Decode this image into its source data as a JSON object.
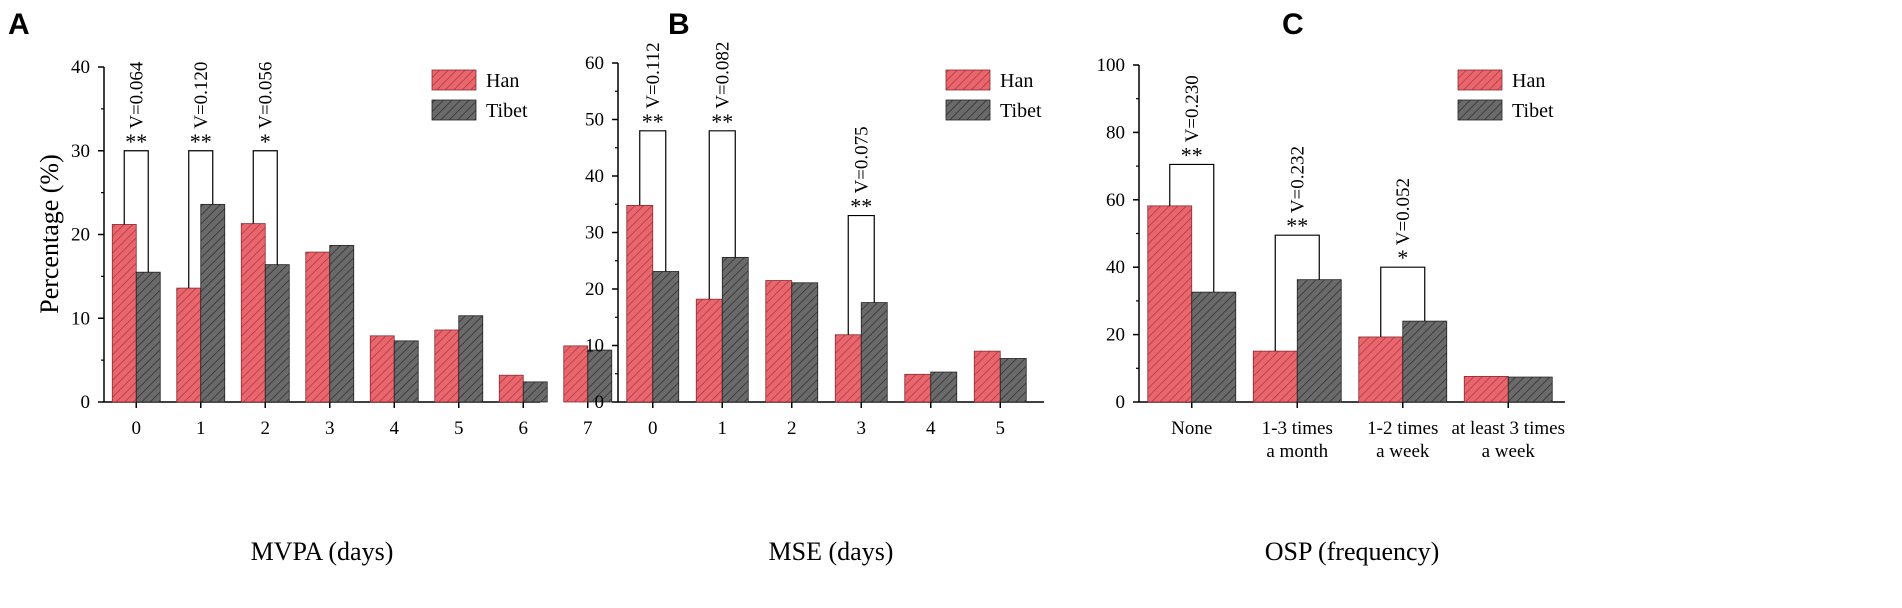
{
  "colors": {
    "han": "#e8666d",
    "tibet": "#6a6a6a"
  },
  "chart_data": [
    {
      "type": "bar",
      "panel": "A",
      "xlabel": "MVPA (days)",
      "ylabel": "Percentage (%)",
      "ylim": [
        0,
        40
      ],
      "yticks": [
        0,
        10,
        20,
        30,
        40
      ],
      "categories": [
        "0",
        "1",
        "2",
        "3",
        "4",
        "5",
        "6",
        "7"
      ],
      "series": [
        {
          "name": "Han",
          "values": [
            21.2,
            13.6,
            21.3,
            17.9,
            7.9,
            8.6,
            3.2,
            6.7
          ]
        },
        {
          "name": "Tibet",
          "values": [
            15.5,
            23.6,
            16.4,
            18.7,
            7.3,
            10.3,
            2.4,
            6.2
          ]
        }
      ],
      "legend_position": "top-right",
      "annotations": [
        {
          "category": "0",
          "bracket_y": 30,
          "stars": "**",
          "v": "V=0.064"
        },
        {
          "category": "1",
          "bracket_y": 30,
          "stars": "**",
          "v": "V=0.120"
        },
        {
          "category": "2",
          "bracket_y": 30,
          "stars": "*",
          "v": "V=0.056"
        }
      ]
    },
    {
      "type": "bar",
      "panel": "B",
      "xlabel": "MSE (days)",
      "ylabel": "",
      "ylim": [
        0,
        60
      ],
      "yticks": [
        0,
        10,
        20,
        30,
        40,
        50,
        60
      ],
      "categories": [
        "0",
        "1",
        "2",
        "3",
        "4",
        "5"
      ],
      "series": [
        {
          "name": "Han",
          "values": [
            34.8,
            18.2,
            21.5,
            11.9,
            4.9,
            9.0
          ]
        },
        {
          "name": "Tibet",
          "values": [
            23.1,
            25.6,
            21.1,
            17.6,
            5.3,
            7.7
          ]
        }
      ],
      "legend_position": "top-right",
      "annotations": [
        {
          "category": "0",
          "bracket_y": 48,
          "stars": "**",
          "v": "V=0.112"
        },
        {
          "category": "1",
          "bracket_y": 48,
          "stars": "**",
          "v": "V=0.082"
        },
        {
          "category": "3",
          "bracket_y": 33,
          "stars": "**",
          "v": "V=0.075"
        }
      ]
    },
    {
      "type": "bar",
      "panel": "C",
      "xlabel": "OSP (frequency)",
      "ylabel": "",
      "ylim": [
        0,
        100
      ],
      "yticks": [
        0,
        20,
        40,
        60,
        80,
        100
      ],
      "categories": [
        [
          "None"
        ],
        [
          "1-3 times",
          "a month"
        ],
        [
          "1-2 times",
          "a week"
        ],
        [
          "at least 3 times",
          "a week"
        ]
      ],
      "series": [
        {
          "name": "Han",
          "values": [
            58.2,
            15.1,
            19.3,
            7.6
          ]
        },
        {
          "name": "Tibet",
          "values": [
            32.6,
            36.3,
            24.0,
            7.4
          ]
        }
      ],
      "legend_position": "top-right",
      "annotations": [
        {
          "category": "None",
          "bracket_y": 70.5,
          "stars": "**",
          "v": "V=0.230"
        },
        {
          "category": "1-3 times a month",
          "bracket_y": 49.5,
          "stars": "**",
          "v": "V=0.232"
        },
        {
          "category": "1-2 times a week",
          "bracket_y": 40,
          "stars": "*",
          "v": "V=0.052"
        }
      ]
    }
  ]
}
